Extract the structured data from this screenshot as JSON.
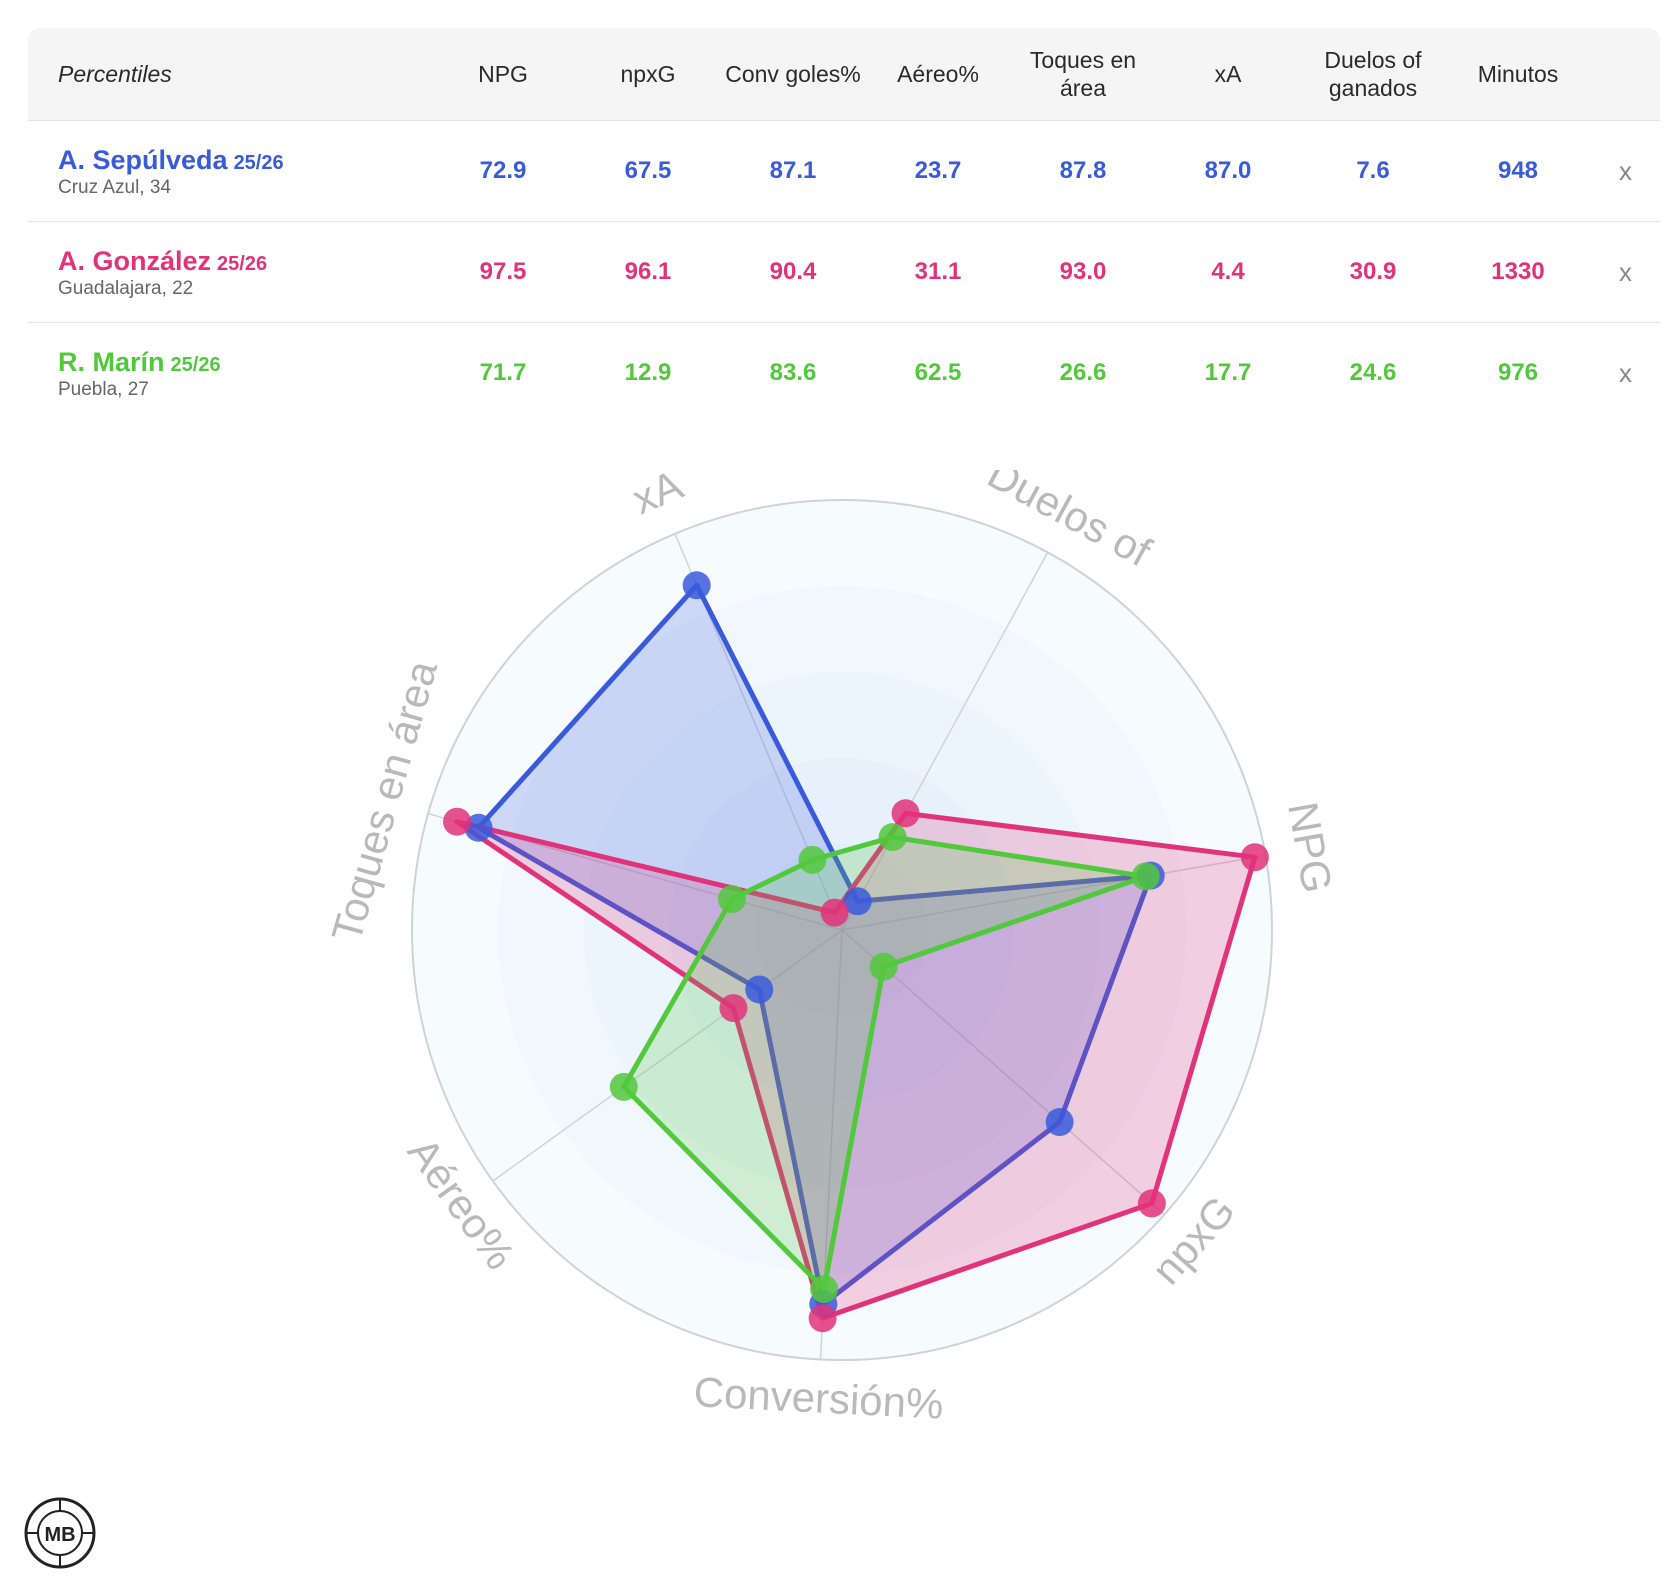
{
  "table": {
    "header_label": "Percentiles",
    "columns": [
      "NPG",
      "npxG",
      "Conv goles%",
      "Aéreo%",
      "Toques en área",
      "xA",
      "Duelos of ganados",
      "Minutos"
    ],
    "close_label": "x",
    "players": [
      {
        "name": "A. Sepúlveda",
        "season": "25/26",
        "club_age": "Cruz Azul, 34",
        "color": "#3a5bd9",
        "values": [
          "72.9",
          "67.5",
          "87.1",
          "23.7",
          "87.8",
          "87.0",
          "7.6",
          "948"
        ]
      },
      {
        "name": "A. González",
        "season": "25/26",
        "club_age": "Guadalajara, 22",
        "color": "#e0337a",
        "values": [
          "97.5",
          "96.1",
          "90.4",
          "31.1",
          "93.0",
          "4.4",
          "30.9",
          "1330"
        ]
      },
      {
        "name": "R. Marín",
        "season": "25/26",
        "club_age": "Puebla, 27",
        "color": "#52c83c",
        "values": [
          "71.7",
          "12.9",
          "83.6",
          "62.5",
          "26.6",
          "17.7",
          "24.6",
          "976"
        ]
      }
    ]
  },
  "chart_data": {
    "type": "radar",
    "axes": [
      "NPG",
      "npxG",
      "Conversión%",
      "Aéreo%",
      "Toques en área",
      "xA",
      "Duelos of"
    ],
    "range": [
      0,
      100
    ],
    "series": [
      {
        "name": "A. Sepúlveda",
        "color": "#3a5bd9",
        "values": [
          72.9,
          67.5,
          87.1,
          23.7,
          87.8,
          87.0,
          7.6
        ]
      },
      {
        "name": "A. González",
        "color": "#e0337a",
        "values": [
          97.5,
          96.1,
          90.4,
          31.1,
          93.0,
          4.4,
          30.9
        ]
      },
      {
        "name": "R. Marín",
        "color": "#52c83c",
        "values": [
          71.7,
          12.9,
          83.6,
          62.5,
          26.6,
          17.7,
          24.6
        ]
      }
    ]
  },
  "logo_text": "MB"
}
